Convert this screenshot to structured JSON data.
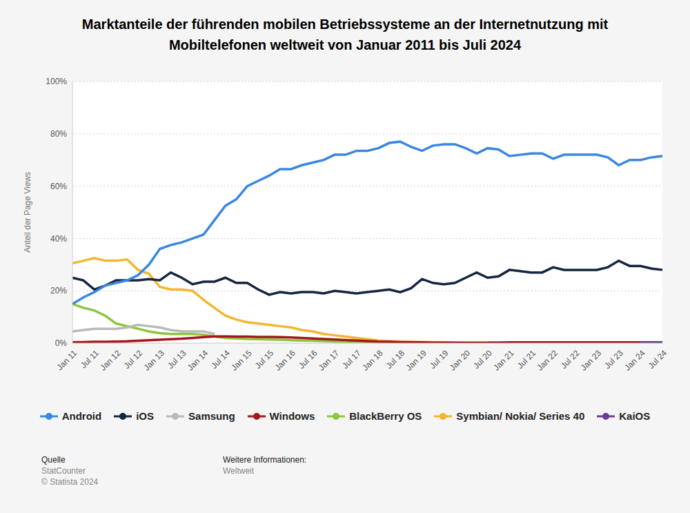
{
  "chart_data": {
    "type": "line",
    "title": "Marktanteile der führenden mobilen Betriebssysteme an der Internetnutzung mit Mobiltelefonen weltweit von Januar 2011 bis Juli 2024",
    "y_label": "Anteil der Page Views",
    "categories": [
      "Jan 11",
      null,
      "Jul 11",
      null,
      "Jan 12",
      null,
      "Jul 12",
      null,
      "Jan 13",
      null,
      "Jul 13",
      null,
      "Jan 14",
      null,
      "Jul 14",
      null,
      "Jan 15",
      null,
      "Jul 15",
      null,
      "Jan 16",
      null,
      "Jul 16",
      null,
      "Jan 17",
      null,
      "Jul 17",
      null,
      "Jan 18",
      null,
      "Jul 18",
      null,
      "Jan 19",
      null,
      "Jul 19",
      null,
      "Jan 20",
      null,
      "Jul 20",
      null,
      "Jan 21",
      null,
      "Jul 21",
      null,
      "Jan 22",
      null,
      "Jul 22",
      null,
      "Jan 23",
      null,
      "Jul 23",
      null,
      "Jan 24",
      null,
      "Jul 24"
    ],
    "ylim": [
      0,
      100
    ],
    "yticks": [
      {
        "value": 0,
        "label": "0%"
      },
      {
        "value": 20,
        "label": "20%"
      },
      {
        "value": 40,
        "label": "40%"
      },
      {
        "value": 60,
        "label": "60%"
      },
      {
        "value": 80,
        "label": "80%"
      },
      {
        "value": 100,
        "label": "100%"
      }
    ],
    "grid": true,
    "legend": "bottom",
    "series": [
      {
        "name": "Android",
        "color": "#3a87e0",
        "values": [
          15,
          17.5,
          19.5,
          22,
          23,
          24,
          26,
          30,
          36,
          37.5,
          38.5,
          40,
          41.5,
          47,
          52.5,
          55,
          60,
          62,
          64,
          66.5,
          66.5,
          68,
          69,
          70,
          72,
          72,
          73.5,
          73.5,
          74.5,
          76.5,
          77,
          75,
          73.5,
          75.5,
          76,
          76,
          74.5,
          72.5,
          74.5,
          74,
          71.5,
          72,
          72.5,
          72.5,
          70.5,
          72,
          72,
          72,
          72,
          71,
          68,
          70,
          70,
          71,
          71.5
        ]
      },
      {
        "name": "iOS",
        "color": "#13263f",
        "values": [
          25,
          24,
          20.5,
          22,
          24,
          24,
          24,
          24.5,
          24,
          27,
          25,
          22.5,
          23.5,
          23.5,
          25,
          23,
          23,
          20.5,
          18.5,
          19.5,
          19,
          19.5,
          19.5,
          19,
          20,
          19.5,
          19,
          19.5,
          20,
          20.5,
          19.5,
          21,
          24.5,
          23,
          22.5,
          23,
          25,
          27,
          25,
          25.5,
          28,
          27.5,
          27,
          27,
          29,
          28,
          28,
          28,
          28,
          29,
          31.5,
          29.5,
          29.5,
          28.5,
          28
        ]
      },
      {
        "name": "Samsung",
        "color": "#b9b9b9",
        "values": [
          4.5,
          5,
          5.5,
          5.5,
          5.5,
          6,
          7,
          6.5,
          6,
          5,
          4.5,
          4.5,
          4.5,
          3.5,
          null,
          null,
          null,
          null,
          null,
          null,
          null,
          null,
          null,
          null,
          null,
          null,
          null,
          null,
          null,
          null,
          null,
          null,
          null,
          null,
          null,
          null,
          null,
          null,
          null,
          null,
          null,
          null,
          null,
          null,
          null,
          null,
          null,
          null,
          null,
          null,
          null,
          null,
          null,
          null,
          null
        ]
      },
      {
        "name": "Windows",
        "color": "#a3171a",
        "values": [
          0.3,
          0.4,
          0.5,
          0.5,
          0.6,
          0.7,
          0.9,
          1.1,
          1.3,
          1.5,
          1.7,
          2,
          2.3,
          2.6,
          2.6,
          2.5,
          2.5,
          2.4,
          2.4,
          2.3,
          2.2,
          2,
          1.8,
          1.6,
          1.4,
          1.2,
          1,
          0.8,
          0.6,
          0.5,
          0.4,
          0.3,
          0.3,
          0.2,
          0.2,
          0.1,
          0.1,
          0.1,
          0.1,
          0.1,
          0.1,
          0.1,
          0.1,
          0.1,
          0.1,
          0.1,
          0.1,
          0.1,
          0.1,
          0.1,
          0.1,
          0.1,
          0.1,
          null,
          null
        ]
      },
      {
        "name": "BlackBerry OS",
        "color": "#8cc63f",
        "values": [
          15,
          13.5,
          12.5,
          10.5,
          7.5,
          6.5,
          5.5,
          4.5,
          3.8,
          3.5,
          3.5,
          3.5,
          3.2,
          2.5,
          2,
          1.8,
          1.6,
          1.5,
          1.4,
          1.3,
          1.1,
          1,
          0.9,
          0.8,
          0.6,
          0.5,
          0.4,
          0.3,
          0.2,
          0.2,
          0.2,
          0.2,
          0.1,
          0.1,
          0.1,
          0.1,
          0.1,
          0.1,
          0.1,
          null,
          null,
          null,
          null,
          null,
          null,
          null,
          null,
          null,
          null,
          null,
          null,
          null,
          null,
          null,
          null
        ]
      },
      {
        "name": "Symbian/ Nokia/ Series 40",
        "color": "#f2b630",
        "values": [
          30.5,
          31.5,
          32.5,
          31.5,
          31.5,
          32,
          28,
          26.5,
          21.5,
          20.5,
          20.5,
          20,
          16.5,
          13.5,
          10.5,
          9,
          8,
          7.5,
          7,
          6.5,
          6,
          5,
          4.5,
          3.5,
          3,
          2.5,
          2,
          1.5,
          1,
          0.8,
          0.6,
          0.5,
          0.4,
          0.4,
          0.3,
          0.3,
          0.2,
          0.2,
          0.1,
          null,
          null,
          null,
          null,
          null,
          null,
          null,
          null,
          null,
          null,
          null,
          null,
          null,
          null,
          null,
          null
        ]
      },
      {
        "name": "KaiOS",
        "color": "#6a3d8e",
        "values": [
          null,
          null,
          null,
          null,
          null,
          null,
          null,
          null,
          null,
          null,
          null,
          null,
          null,
          null,
          null,
          null,
          null,
          null,
          null,
          null,
          null,
          null,
          null,
          null,
          null,
          null,
          null,
          null,
          null,
          null,
          null,
          null,
          null,
          null,
          null,
          null,
          null,
          null,
          0.2,
          0.2,
          0.3,
          0.3,
          0.3,
          0.3,
          0.3,
          0.3,
          0.3,
          0.3,
          0.3,
          0.3,
          0.3,
          0.3,
          0.3,
          0.3,
          0.3
        ]
      }
    ],
    "source_label": "Quelle",
    "source": "StatCounter",
    "copyright": "© Statista 2024",
    "info_label": "Weitere Informationen:",
    "info": "Weltweit"
  }
}
